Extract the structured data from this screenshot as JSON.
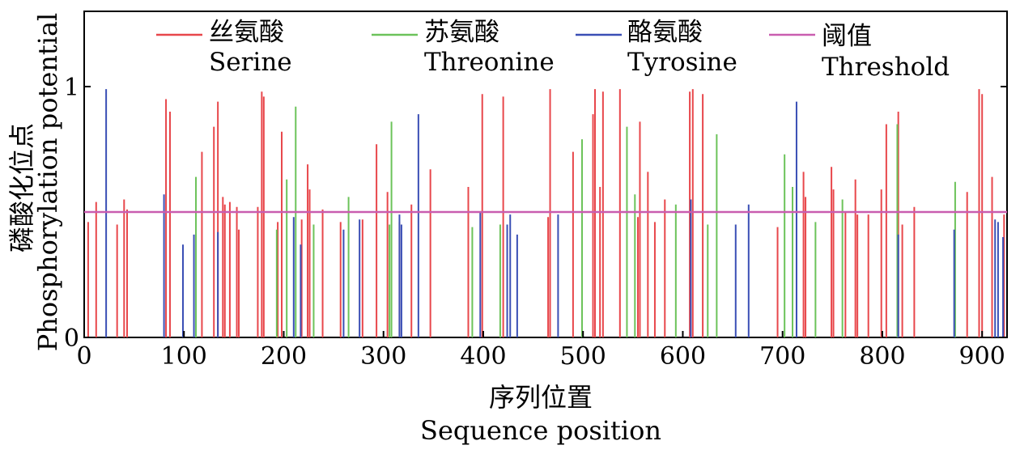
{
  "chart_data": {
    "type": "bar",
    "subtype": "stem",
    "xlabel_cn": "序列位置",
    "xlabel_en": "Sequence position",
    "ylabel_cn": "磷酸化位点",
    "ylabel_en": "Phosphorylation potential",
    "xlim": [
      0,
      925
    ],
    "ylim": [
      0,
      1.0
    ],
    "x_ticks": [
      "0",
      "100",
      "200",
      "300",
      "400",
      "500",
      "600",
      "700",
      "800",
      "900"
    ],
    "y_ticks": [
      "0",
      "1"
    ],
    "grid": false,
    "legend_position": "top",
    "threshold": 0.5,
    "colors": {
      "serine": "#e8474b",
      "threonine": "#6cc35a",
      "tyrosine": "#3a4fb5",
      "threshold": "#c95db0"
    },
    "series": [
      {
        "key": "serine",
        "name_cn": "丝氨酸",
        "name_en": "Serine",
        "color": "#e8474b",
        "points": [
          [
            4,
            0.46
          ],
          [
            12,
            0.54
          ],
          [
            33,
            0.45
          ],
          [
            40,
            0.55
          ],
          [
            43,
            0.51
          ],
          [
            82,
            0.95
          ],
          [
            86,
            0.9
          ],
          [
            118,
            0.74
          ],
          [
            130,
            0.84
          ],
          [
            134,
            0.94
          ],
          [
            139,
            0.56
          ],
          [
            141,
            0.53
          ],
          [
            146,
            0.54
          ],
          [
            153,
            0.52
          ],
          [
            155,
            0.43
          ],
          [
            174,
            0.52
          ],
          [
            178,
            0.98
          ],
          [
            180,
            0.96
          ],
          [
            194,
            0.46
          ],
          [
            198,
            0.82
          ],
          [
            218,
            0.47
          ],
          [
            224,
            0.69
          ],
          [
            226,
            0.59
          ],
          [
            239,
            0.51
          ],
          [
            257,
            0.46
          ],
          [
            279,
            0.47
          ],
          [
            293,
            0.77
          ],
          [
            304,
            0.58
          ],
          [
            316,
            0.46
          ],
          [
            328,
            0.53
          ],
          [
            347,
            0.67
          ],
          [
            385,
            0.6
          ],
          [
            399,
            0.97
          ],
          [
            420,
            0.96
          ],
          [
            465,
            0.48
          ],
          [
            467,
            0.99
          ],
          [
            490,
            0.74
          ],
          [
            510,
            0.89
          ],
          [
            512,
            0.99
          ],
          [
            517,
            0.6
          ],
          [
            520,
            0.98
          ],
          [
            537,
            0.99
          ],
          [
            555,
            0.48
          ],
          [
            557,
            0.86
          ],
          [
            565,
            0.66
          ],
          [
            572,
            0.46
          ],
          [
            582,
            0.55
          ],
          [
            607,
            0.98
          ],
          [
            610,
            0.99
          ],
          [
            620,
            0.97
          ],
          [
            695,
            0.44
          ],
          [
            721,
            0.66
          ],
          [
            723,
            0.56
          ],
          [
            749,
            0.68
          ],
          [
            751,
            0.59
          ],
          [
            763,
            0.5
          ],
          [
            773,
            0.63
          ],
          [
            775,
            0.49
          ],
          [
            786,
            0.49
          ],
          [
            799,
            0.59
          ],
          [
            804,
            0.85
          ],
          [
            816,
            0.9
          ],
          [
            820,
            0.45
          ],
          [
            832,
            0.52
          ],
          [
            885,
            0.58
          ],
          [
            897,
            0.99
          ],
          [
            900,
            0.97
          ],
          [
            910,
            0.64
          ],
          [
            922,
            0.49
          ]
        ]
      },
      {
        "key": "threonine",
        "name_cn": "苏氨酸",
        "name_en": "Threonine",
        "color": "#6cc35a",
        "points": [
          [
            112,
            0.64
          ],
          [
            193,
            0.43
          ],
          [
            203,
            0.63
          ],
          [
            212,
            0.92
          ],
          [
            230,
            0.45
          ],
          [
            265,
            0.56
          ],
          [
            306,
            0.45
          ],
          [
            308,
            0.86
          ],
          [
            389,
            0.44
          ],
          [
            417,
            0.45
          ],
          [
            499,
            0.79
          ],
          [
            544,
            0.84
          ],
          [
            552,
            0.57
          ],
          [
            593,
            0.53
          ],
          [
            625,
            0.45
          ],
          [
            634,
            0.81
          ],
          [
            702,
            0.73
          ],
          [
            710,
            0.6
          ],
          [
            733,
            0.46
          ],
          [
            760,
            0.55
          ],
          [
            815,
            0.85
          ],
          [
            873,
            0.62
          ]
        ]
      },
      {
        "key": "tyrosine",
        "name_cn": "酪氨酸",
        "name_en": "Tyrosine",
        "color": "#3a4fb5",
        "points": [
          [
            22,
            0.99
          ],
          [
            80,
            0.57
          ],
          [
            99,
            0.37
          ],
          [
            110,
            0.41
          ],
          [
            134,
            0.42
          ],
          [
            210,
            0.48
          ],
          [
            217,
            0.37
          ],
          [
            260,
            0.43
          ],
          [
            276,
            0.47
          ],
          [
            316,
            0.49
          ],
          [
            318,
            0.45
          ],
          [
            335,
            0.89
          ],
          [
            397,
            0.5
          ],
          [
            424,
            0.45
          ],
          [
            427,
            0.49
          ],
          [
            434,
            0.41
          ],
          [
            475,
            0.49
          ],
          [
            608,
            0.55
          ],
          [
            653,
            0.45
          ],
          [
            666,
            0.53
          ],
          [
            714,
            0.94
          ],
          [
            816,
            0.41
          ],
          [
            872,
            0.43
          ],
          [
            913,
            0.47
          ],
          [
            916,
            0.46
          ],
          [
            921,
            0.4
          ]
        ]
      }
    ],
    "threshold_series": {
      "name_cn": "阈值",
      "name_en": "Threshold"
    }
  }
}
